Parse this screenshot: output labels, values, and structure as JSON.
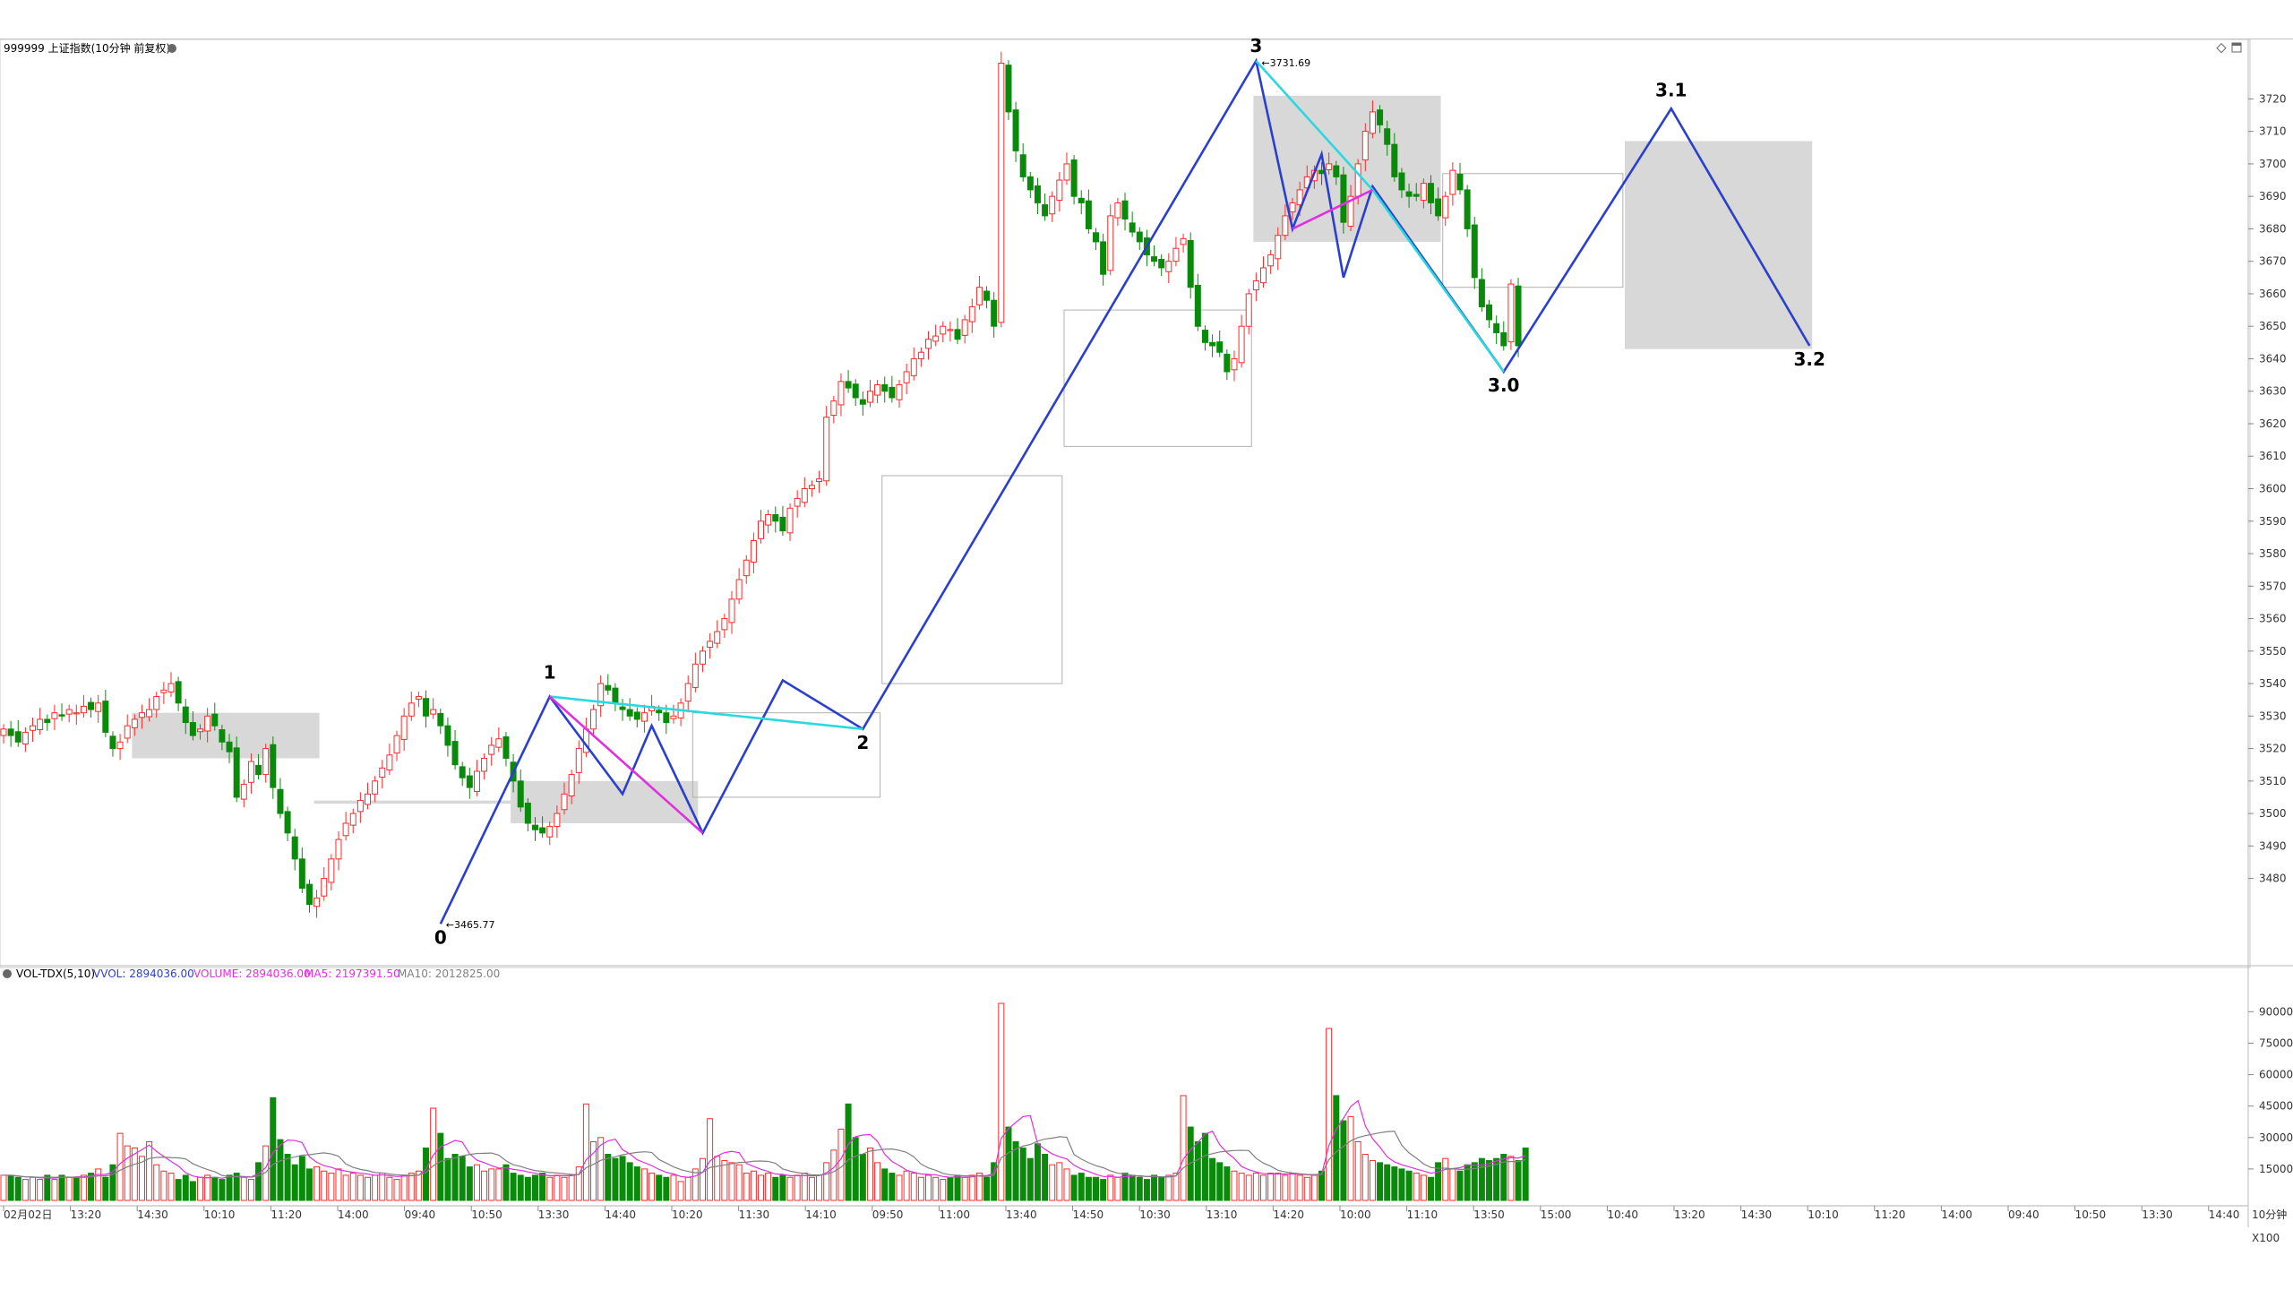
{
  "header": {
    "title": "999999 上证指数(10分钟 前复权)",
    "vol_title": "VOL-TDX(5,10)",
    "vvol": "VVOL: 2894036.00",
    "volume": "VOLUME: 2894036.00",
    "ma5": "MA5: 2197391.50",
    "ma10": "MA10: 2012825.00"
  },
  "colors": {
    "up": "#ff2a2a",
    "down": "#0a8a0a",
    "wave": "#2a3fd0",
    "aux": "#e030e0",
    "cyan": "#2ad8e0",
    "box": "#d8d8d8",
    "ma5": "#e030e0",
    "ma10": "#808080"
  },
  "icons": [
    "settings-dot-icon",
    "diamond-icon",
    "window-icon"
  ],
  "chart_data": [
    {
      "type": "candlestick",
      "title": "999999 上证指数(10分钟 前复权)",
      "ylim": [
        3465,
        3735
      ],
      "y_ticks": [
        3480,
        3490,
        3500,
        3510,
        3520,
        3530,
        3540,
        3550,
        3560,
        3570,
        3580,
        3590,
        3600,
        3610,
        3620,
        3630,
        3640,
        3650,
        3660,
        3670,
        3680,
        3690,
        3700,
        3710,
        3720
      ],
      "x_ticks": [
        "02月02日",
        "13:20",
        "14:30",
        "10:10",
        "11:20",
        "14:00",
        "09:40",
        "10:50",
        "13:30",
        "14:40",
        "10:20",
        "11:30",
        "14:10",
        "09:50",
        "11:00",
        "13:40",
        "14:50",
        "10:30",
        "13:10",
        "14:20",
        "10:00",
        "11:10",
        "13:50",
        "15:00",
        "10:40",
        "13:20",
        "14:30",
        "10:10",
        "11:20",
        "14:00",
        "09:40",
        "10:50",
        "13:30",
        "14:40"
      ],
      "period_label": "10分钟",
      "candles_close": [
        3526,
        3524,
        3522,
        3525,
        3527,
        3529,
        3528,
        3531,
        3530,
        3532,
        3531,
        3533,
        3532,
        3534,
        3525,
        3520,
        3522,
        3527,
        3529,
        3531,
        3532,
        3536,
        3538,
        3540,
        3534,
        3528,
        3524,
        3526,
        3530,
        3527,
        3522,
        3519,
        3505,
        3509,
        3516,
        3512,
        3520,
        3508,
        3500,
        3494,
        3486,
        3477,
        3472,
        3474,
        3480,
        3486,
        3492,
        3497,
        3500,
        3504,
        3506,
        3510,
        3514,
        3518,
        3524,
        3530,
        3534,
        3536,
        3530,
        3532,
        3527,
        3521,
        3515,
        3511,
        3508,
        3513,
        3517,
        3521,
        3523,
        3517,
        3510,
        3502,
        3497,
        3495,
        3494,
        3496,
        3500,
        3506,
        3512,
        3520,
        3526,
        3532,
        3540,
        3538,
        3534,
        3532,
        3530,
        3529,
        3531,
        3533,
        3531,
        3528,
        3530,
        3534,
        3540,
        3546,
        3550,
        3553,
        3556,
        3560,
        3566,
        3572,
        3578,
        3584,
        3590,
        3592,
        3590,
        3587,
        3594,
        3597,
        3600,
        3601,
        3603,
        3622,
        3627,
        3633,
        3631,
        3628,
        3626,
        3630,
        3632,
        3630,
        3628,
        3632,
        3636,
        3640,
        3642,
        3646,
        3647,
        3650,
        3649,
        3646,
        3652,
        3656,
        3662,
        3658,
        3650,
        3731,
        3716,
        3704,
        3696,
        3692,
        3688,
        3684,
        3690,
        3695,
        3700,
        3690,
        3688,
        3680,
        3676,
        3666,
        3684,
        3688,
        3683,
        3679,
        3676,
        3672,
        3670,
        3668,
        3670,
        3674,
        3677,
        3662,
        3650,
        3645,
        3644,
        3642,
        3636,
        3640,
        3650,
        3660,
        3664,
        3668,
        3672,
        3678,
        3684,
        3688,
        3692,
        3696,
        3698,
        3697,
        3700,
        3696,
        3682,
        3690,
        3700,
        3710,
        3716,
        3712,
        3706,
        3696,
        3692,
        3690,
        3690,
        3694,
        3688,
        3684,
        3690,
        3698,
        3692,
        3680,
        3665,
        3656,
        3652,
        3648,
        3644,
        3663,
        3644
      ],
      "annotations": [
        {
          "text": "0",
          "at": 3466
        },
        {
          "text": "1",
          "at": 3536
        },
        {
          "text": "2",
          "at": 3526
        },
        {
          "text": "3",
          "at": 3731.69
        },
        {
          "text": "3.0",
          "at": 3636
        },
        {
          "text": "3.1",
          "at": 3717
        },
        {
          "text": "3.2",
          "at": 3644
        }
      ],
      "price_labels": [
        "3465.77",
        "3731.69"
      ],
      "waves": [
        {
          "color": "wave",
          "points": [
            [
              60,
              3466
            ],
            [
              75,
              3536
            ],
            [
              85,
              3506
            ],
            [
              89,
              3527
            ],
            [
              96,
              3494
            ],
            [
              107,
              3541
            ],
            [
              118,
              3526
            ],
            [
              172,
              3731.69
            ],
            [
              177,
              3680
            ],
            [
              181,
              3703
            ],
            [
              184,
              3665
            ],
            [
              188,
              3693
            ],
            [
              206,
              3636
            ],
            [
              229,
              3717
            ],
            [
              248,
              3644
            ]
          ]
        },
        {
          "color": "cyan",
          "points": [
            [
              75,
              3536
            ],
            [
              118,
              3526
            ]
          ]
        },
        {
          "color": "cyan",
          "points": [
            [
              172,
              3731.69
            ],
            [
              188,
              3692
            ],
            [
              206,
              3636
            ]
          ]
        },
        {
          "color": "aux",
          "points": [
            [
              75,
              3536
            ],
            [
              96,
              3494
            ]
          ]
        },
        {
          "color": "aux",
          "points": [
            [
              177,
              3680
            ],
            [
              188,
              3692
            ]
          ]
        }
      ],
      "zones": [
        {
          "x": [
            18,
            43
          ],
          "y": [
            3517,
            3531
          ],
          "fill": true
        },
        {
          "x": [
            43,
            70
          ],
          "y": [
            3503,
            3504
          ],
          "fill": true
        },
        {
          "x": [
            70,
            95
          ],
          "y": [
            3497,
            3510
          ],
          "fill": true
        },
        {
          "x": [
            95,
            120
          ],
          "y": [
            3505,
            3531
          ],
          "fill": false
        },
        {
          "x": [
            121,
            145
          ],
          "y": [
            3540,
            3604
          ],
          "fill": false
        },
        {
          "x": [
            146,
            171
          ],
          "y": [
            3613,
            3655
          ],
          "fill": false
        },
        {
          "x": [
            172,
            197
          ],
          "y": [
            3676,
            3721
          ],
          "fill": true
        },
        {
          "x": [
            198,
            222
          ],
          "y": [
            3662,
            3697
          ],
          "fill": false
        },
        {
          "x": [
            223,
            248
          ],
          "y": [
            3643,
            3707
          ],
          "fill": true
        }
      ]
    },
    {
      "type": "bar",
      "title": "VOL-TDX(5,10)",
      "ylim": [
        0,
        95000
      ],
      "y_ticks": [
        15000,
        30000,
        45000,
        60000,
        75000,
        90000
      ],
      "y_unit": "X100",
      "series": [
        {
          "name": "VOLUME",
          "values": [
            12000,
            12000,
            11000,
            10000,
            11000,
            10000,
            12000,
            10000,
            12000,
            11000,
            11000,
            12000,
            13000,
            15000,
            11000,
            17000,
            32000,
            26000,
            25000,
            21000,
            28000,
            17000,
            14000,
            13000,
            10000,
            12000,
            9000,
            11000,
            12000,
            11000,
            10000,
            12000,
            13000,
            11000,
            10000,
            18000,
            26000,
            49000,
            29000,
            22000,
            17000,
            21000,
            15000,
            16000,
            14000,
            13000,
            15000,
            12000,
            13000,
            12000,
            11000,
            12000,
            13000,
            11000,
            10000,
            12000,
            13000,
            14000,
            25000,
            44000,
            32000,
            20000,
            22000,
            21000,
            16000,
            17000,
            14000,
            15000,
            15000,
            17000,
            13000,
            12000,
            11000,
            12000,
            13000,
            11000,
            12000,
            11000,
            12000,
            16000,
            46000,
            28000,
            30000,
            22000,
            20000,
            21000,
            18000,
            16000,
            15000,
            13000,
            12000,
            11000,
            12000,
            9000,
            11000,
            15000,
            20000,
            39000,
            21000,
            19000,
            18000,
            17000,
            13000,
            14000,
            12000,
            13000,
            11000,
            12000,
            11000,
            12000,
            13000,
            11000,
            12000,
            18000,
            24000,
            34000,
            46000,
            30000,
            22000,
            25000,
            18000,
            15000,
            13000,
            12000,
            14000,
            13000,
            11000,
            12000,
            11000,
            10000,
            11000,
            12000,
            11000,
            12000,
            13000,
            11000,
            18000,
            94000,
            35000,
            28000,
            25000,
            20000,
            27000,
            22000,
            17000,
            18000,
            15000,
            12000,
            13000,
            11000,
            11000,
            10000,
            12000,
            11000,
            13000,
            12000,
            11000,
            10000,
            12000,
            11000,
            12000,
            13000,
            50000,
            35000,
            28000,
            32000,
            20000,
            18000,
            16000,
            14000,
            13000,
            12000,
            13000,
            12000,
            13000,
            13000,
            12000,
            13000,
            12000,
            11000,
            12000,
            14000,
            82000,
            50000,
            38000,
            40000,
            28000,
            22000,
            19000,
            18000,
            17000,
            16000,
            15000,
            14000,
            13000,
            12000,
            11000,
            18000,
            20000,
            15000,
            14000,
            17000,
            18000,
            20000,
            19000,
            20000,
            22000,
            21000,
            19000,
            25000
          ]
        },
        {
          "name": "MA5",
          "values": []
        },
        {
          "name": "MA10",
          "values": []
        }
      ]
    }
  ]
}
